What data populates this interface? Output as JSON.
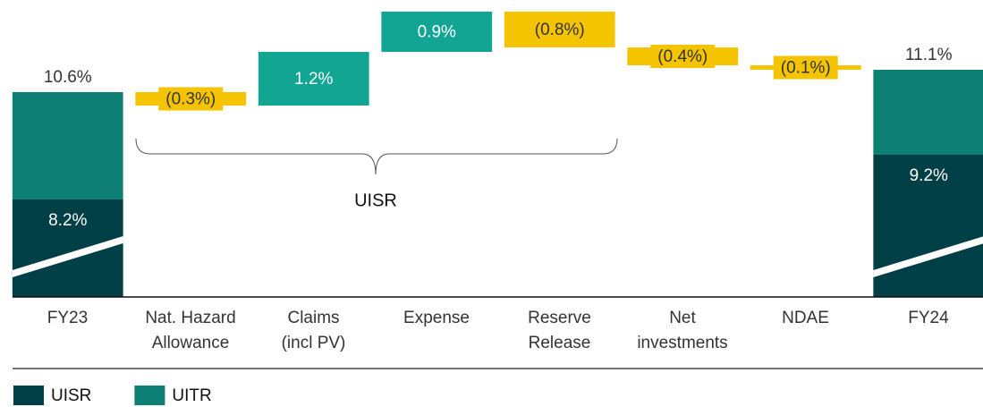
{
  "chart_data": {
    "type": "waterfall",
    "categories": [
      "FY23",
      "Nat. Hazard\nAllowance",
      "Claims\n(incl PV)",
      "Expense",
      "Reserve\nRelease",
      "Net\ninvestments",
      "NDAE",
      "FY24"
    ],
    "values": [
      10.6,
      -0.3,
      1.2,
      0.9,
      -0.8,
      -0.4,
      -0.1,
      11.1
    ],
    "value_labels": [
      "10.6%",
      "(0.3%)",
      "1.2%",
      "0.9%",
      "(0.8%)",
      "(0.4%)",
      "(0.1%)",
      "11.1%"
    ],
    "is_total": [
      true,
      false,
      false,
      false,
      false,
      false,
      false,
      true
    ],
    "increase_color": "#13a593",
    "decrease_color": "#f5c400",
    "series": [
      {
        "name": "UISR",
        "color": "#003f46",
        "values": [
          8.2,
          null,
          null,
          null,
          null,
          null,
          null,
          9.2
        ],
        "value_labels": [
          "8.2%",
          null,
          null,
          null,
          null,
          null,
          null,
          "9.2%"
        ]
      },
      {
        "name": "UITR",
        "color": "#0e7f74",
        "values": [
          2.4,
          null,
          null,
          null,
          null,
          null,
          null,
          1.9
        ]
      }
    ],
    "annotation": "UISR"
  }
}
